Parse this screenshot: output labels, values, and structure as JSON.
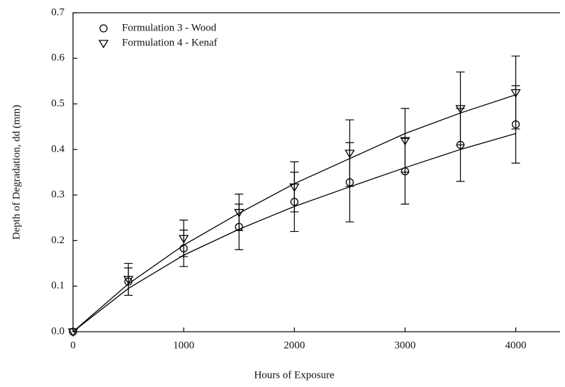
{
  "chart_data": {
    "type": "scatter",
    "xlabel": "Hours of Exposure",
    "ylabel": "Depth of Degradation, dd (mm)",
    "x": [
      0,
      500,
      1000,
      1500,
      2000,
      2500,
      3000,
      3500,
      4000
    ],
    "series": [
      {
        "name": "Formulation 3 - Wood",
        "marker": "circle",
        "color": "#000000",
        "values": [
          0,
          0.11,
          0.183,
          0.23,
          0.285,
          0.328,
          0.352,
          0.41,
          0.455
        ],
        "errors": [
          0,
          0.03,
          0.04,
          0.05,
          0.065,
          0.087,
          0.072,
          0.08,
          0.085
        ],
        "fit": [
          0,
          0.095,
          0.168,
          0.225,
          0.275,
          0.318,
          0.36,
          0.4,
          0.435
        ]
      },
      {
        "name": "Formulation 4 - Kenaf",
        "marker": "triangle-down",
        "color": "#000000",
        "values": [
          0,
          0.115,
          0.205,
          0.262,
          0.318,
          0.392,
          0.42,
          0.49,
          0.525
        ],
        "errors": [
          0,
          0.035,
          0.04,
          0.04,
          0.055,
          0.073,
          0.07,
          0.08,
          0.08
        ],
        "fit": [
          0,
          0.105,
          0.19,
          0.26,
          0.325,
          0.38,
          0.435,
          0.48,
          0.52
        ]
      }
    ],
    "xlim": [
      0,
      4400
    ],
    "xticks": [
      0,
      1000,
      2000,
      3000,
      4000
    ],
    "ylim": [
      0,
      0.7
    ],
    "yticks": [
      {
        "value": 0,
        "label": "0.0"
      },
      0.1,
      0.2,
      0.3,
      0.4,
      0.5,
      0.6,
      0.7
    ],
    "grid": false,
    "legend": "upper-left"
  }
}
